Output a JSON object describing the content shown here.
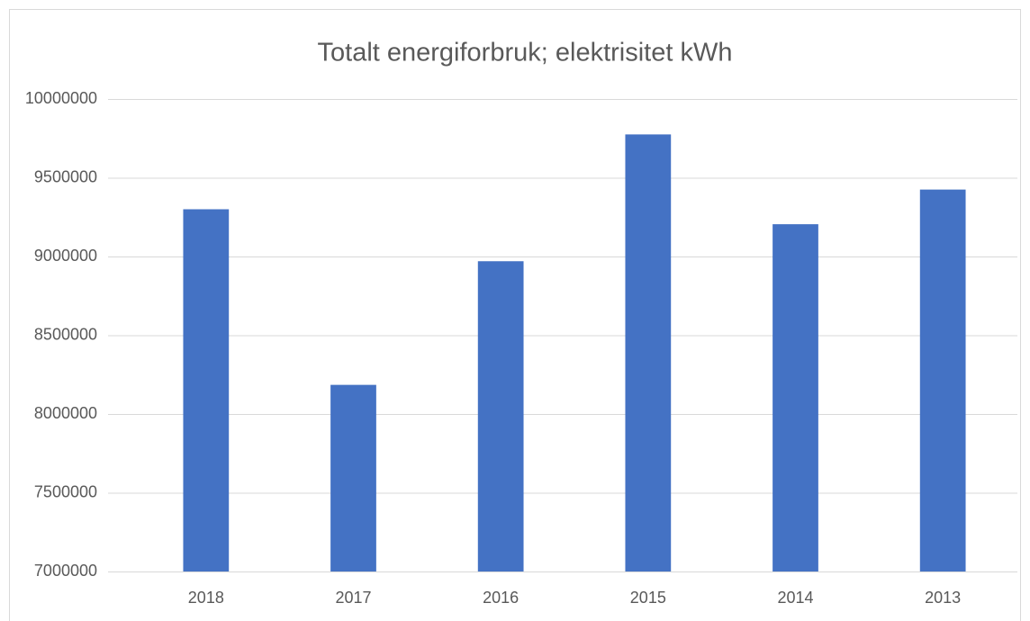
{
  "chart_data": {
    "type": "bar",
    "title": "Totalt energiforbruk; elektrisitet kWh",
    "categories": [
      "2018",
      "2017",
      "2016",
      "2015",
      "2014",
      "2013"
    ],
    "values": [
      9300000,
      8185000,
      8970000,
      9775000,
      9205000,
      9425000
    ],
    "color": "#4472c4",
    "ylim": [
      7000000,
      10000000
    ],
    "yticks": [
      7000000,
      7500000,
      8000000,
      8500000,
      9000000,
      9500000,
      10000000
    ],
    "grid": true
  }
}
